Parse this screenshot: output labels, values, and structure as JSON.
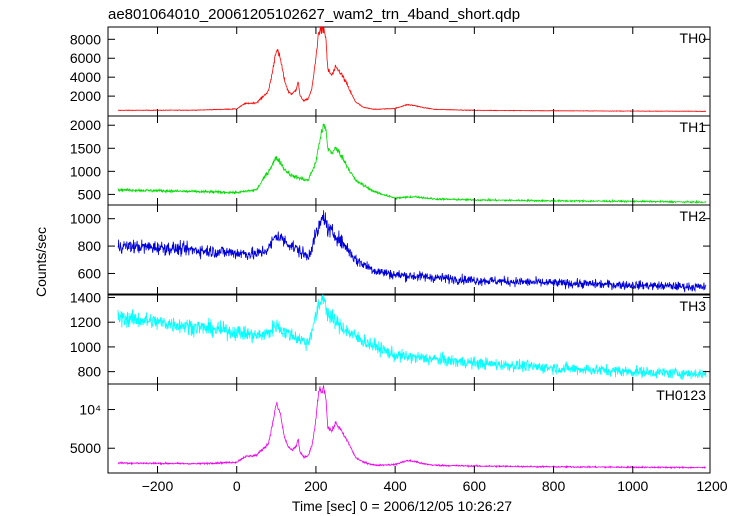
{
  "title": "ae801064010_20061205102627_wam2_trn_4band_short.qdp",
  "ylabel": "Counts/sec",
  "xlabel": "Time [sec] 0 = 2006/12/05 10:26:27",
  "chart_data": {
    "type": "line",
    "title": "ae801064010_20061205102627_wam2_trn_4band_short.qdp",
    "xlabel": "Time [sec] 0 = 2006/12/05 10:26:27",
    "ylabel": "Counts/sec",
    "xlim": [
      -325,
      1195
    ],
    "x_ticks": [
      -200,
      0,
      200,
      400,
      600,
      800,
      1000,
      1200
    ],
    "x_tick_labels": [
      "−200",
      "0",
      "200",
      "400",
      "600",
      "800",
      "1000",
      "1200"
    ],
    "grid": false,
    "panels": [
      {
        "name": "TH0",
        "color": "#ff0000",
        "ylim": [
          -100,
          9300
        ],
        "y_ticks": [
          2000,
          4000,
          6000,
          8000
        ],
        "y_tick_labels": [
          "2000",
          "4000",
          "6000",
          "8000"
        ],
        "noise_frac": 0.04,
        "x": [
          -300,
          -100,
          0,
          20,
          50,
          80,
          90,
          100,
          110,
          120,
          130,
          140,
          150,
          155,
          160,
          170,
          180,
          190,
          200,
          205,
          210,
          215,
          220,
          225,
          230,
          240,
          250,
          260,
          270,
          280,
          290,
          300,
          320,
          350,
          400,
          430,
          450,
          470,
          500,
          600,
          800,
          1000,
          1185
        ],
        "y": [
          500,
          520,
          650,
          1200,
          1300,
          2500,
          4500,
          7000,
          6000,
          3800,
          2500,
          2200,
          2700,
          3600,
          2000,
          1500,
          1700,
          2800,
          6000,
          8200,
          9200,
          8800,
          9000,
          8200,
          4800,
          4200,
          5000,
          4600,
          3900,
          3100,
          2200,
          1400,
          800,
          600,
          700,
          1100,
          1000,
          800,
          600,
          500,
          450,
          420,
          400
        ]
      },
      {
        "name": "TH1",
        "color": "#00dd00",
        "ylim": [
          270,
          2200
        ],
        "y_ticks": [
          500,
          1000,
          1500,
          2000
        ],
        "y_tick_labels": [
          "500",
          "1000",
          "1500",
          "2000"
        ],
        "noise_frac": 0.035,
        "x": [
          -300,
          -200,
          -100,
          0,
          50,
          80,
          100,
          110,
          120,
          140,
          160,
          180,
          200,
          210,
          220,
          225,
          230,
          240,
          250,
          260,
          280,
          300,
          350,
          400,
          450,
          500,
          600,
          800,
          1000,
          1185
        ],
        "y": [
          600,
          580,
          560,
          540,
          600,
          1000,
          1300,
          1200,
          1050,
          900,
          850,
          800,
          1200,
          1700,
          2000,
          1900,
          1500,
          1400,
          1500,
          1400,
          1100,
          800,
          550,
          420,
          450,
          400,
          380,
          360,
          350,
          330
        ]
      },
      {
        "name": "TH2",
        "color": "#0000dd",
        "ylim": [
          450,
          1100
        ],
        "y_ticks": [
          600,
          800,
          1000
        ],
        "y_tick_labels": [
          "600",
          "800",
          "1000"
        ],
        "noise_frac": 0.045,
        "x": [
          -300,
          -200,
          -100,
          0,
          50,
          80,
          100,
          130,
          160,
          180,
          200,
          210,
          220,
          230,
          250,
          280,
          300,
          350,
          400,
          500,
          600,
          800,
          1000,
          1185
        ],
        "y": [
          800,
          790,
          770,
          750,
          740,
          780,
          880,
          820,
          760,
          720,
          880,
          950,
          1030,
          920,
          880,
          780,
          700,
          620,
          590,
          570,
          550,
          530,
          515,
          500
        ]
      },
      {
        "name": "TH3",
        "color": "#00ffff",
        "ylim": [
          700,
          1420
        ],
        "y_ticks": [
          800,
          1000,
          1200,
          1400
        ],
        "y_tick_labels": [
          "800",
          "1000",
          "1200",
          "1400"
        ],
        "noise_frac": 0.04,
        "x": [
          -300,
          -200,
          -100,
          0,
          50,
          80,
          100,
          120,
          150,
          180,
          200,
          210,
          220,
          230,
          250,
          300,
          400,
          500,
          600,
          800,
          1000,
          1185
        ],
        "y": [
          1240,
          1200,
          1160,
          1120,
          1090,
          1110,
          1180,
          1120,
          1080,
          1030,
          1250,
          1350,
          1420,
          1260,
          1200,
          1080,
          930,
          900,
          870,
          830,
          800,
          780
        ]
      },
      {
        "name": "TH0123",
        "color": "#ee00ee",
        "ylim": [
          1800,
          13300
        ],
        "y_ticks": [
          5000,
          10000
        ],
        "y_tick_labels": [
          "5000",
          "10⁴"
        ],
        "noise_frac": 0.025,
        "x": [
          -300,
          -100,
          0,
          20,
          50,
          80,
          90,
          100,
          110,
          120,
          130,
          140,
          150,
          155,
          160,
          170,
          180,
          190,
          200,
          205,
          210,
          215,
          220,
          225,
          230,
          240,
          250,
          260,
          270,
          280,
          290,
          300,
          320,
          350,
          400,
          430,
          450,
          470,
          500,
          600,
          800,
          1000,
          1185
        ],
        "y": [
          3100,
          3000,
          3200,
          3900,
          4100,
          5600,
          8000,
          10800,
          9500,
          6500,
          5200,
          4700,
          5200,
          6200,
          4500,
          3800,
          4000,
          5300,
          8600,
          11500,
          12800,
          12200,
          12900,
          11600,
          7800,
          7200,
          8300,
          7600,
          6700,
          5900,
          4900,
          3800,
          3200,
          2800,
          2900,
          3400,
          3300,
          3000,
          2800,
          2700,
          2600,
          2550,
          2500
        ]
      }
    ]
  }
}
